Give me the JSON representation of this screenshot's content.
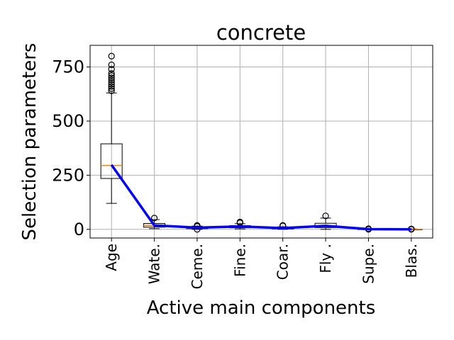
{
  "chart_data": {
    "type": "box",
    "title": "concrete",
    "xlabel": "Active main components",
    "ylabel": "Selection parameters",
    "categories": [
      "Age",
      "Wate.",
      "Ceme.",
      "Fine.",
      "Coar.",
      "Fly .",
      "Supe.",
      "Blas."
    ],
    "ylim": [
      -40,
      850
    ],
    "yticks": [
      0,
      250,
      500,
      750
    ],
    "grid": true,
    "boxes": [
      {
        "q1": 235,
        "median": 295,
        "q3": 395,
        "whisker_low": 120,
        "whisker_high": 630,
        "outliers": [
          640,
          650,
          660,
          670,
          680,
          690,
          700,
          710,
          720,
          740,
          760,
          800
        ]
      },
      {
        "q1": 10,
        "median": 18,
        "q3": 27,
        "whisker_low": 3,
        "whisker_high": 45,
        "outliers": [
          52
        ]
      },
      {
        "q1": 3,
        "median": 6,
        "q3": 9,
        "whisker_low": 0,
        "whisker_high": 15,
        "outliers": [
          18,
          14,
          0
        ]
      },
      {
        "q1": 7,
        "median": 12,
        "q3": 17,
        "whisker_low": 2,
        "whisker_high": 26,
        "outliers": [
          30,
          34
        ]
      },
      {
        "q1": 2,
        "median": 5,
        "q3": 8,
        "whisker_low": 0,
        "whisker_high": 12,
        "outliers": [
          16,
          18
        ]
      },
      {
        "q1": 8,
        "median": 16,
        "q3": 28,
        "whisker_low": 0,
        "whisker_high": 52,
        "outliers": [
          62
        ]
      },
      {
        "q1": 0,
        "median": 1,
        "q3": 2,
        "whisker_low": 0,
        "whisker_high": 3,
        "outliers": [
          0,
          3
        ]
      },
      {
        "q1": 0,
        "median": 0,
        "q3": 1,
        "whisker_low": 0,
        "whisker_high": 2,
        "outliers": [
          0,
          2
        ]
      }
    ],
    "trend_line": {
      "color": "#0000ff",
      "values": [
        298,
        18,
        8,
        13,
        6,
        16,
        1,
        0
      ]
    },
    "colors": {
      "median": "#ff7f0e",
      "trend": "#0000ff",
      "box": "#000000",
      "grid": "#b0b0b0"
    }
  }
}
